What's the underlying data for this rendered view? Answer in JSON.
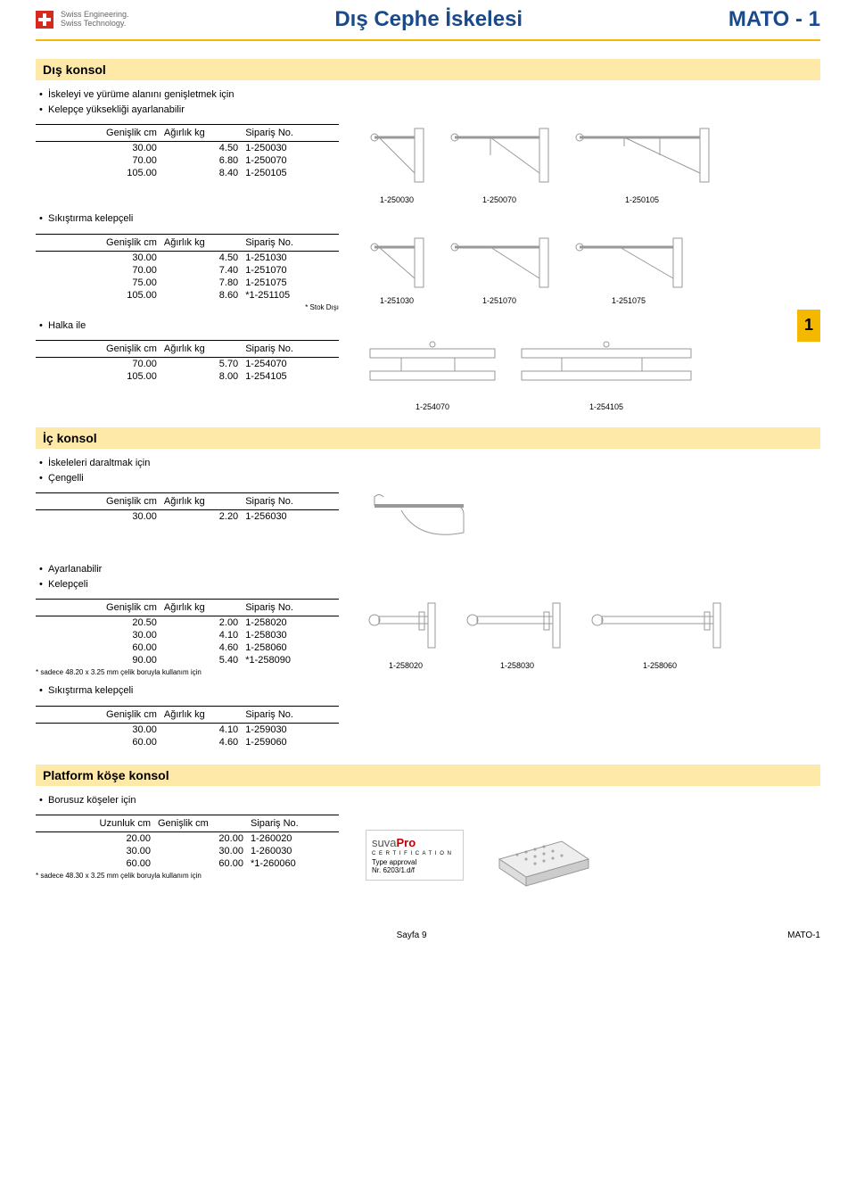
{
  "header": {
    "logo_line1": "Swiss Engineering.",
    "logo_line2": "Swiss Technology.",
    "title": "Dış Cephe İskelesi",
    "product": "MATO - 1"
  },
  "sections": {
    "dis_konsol": {
      "title": "Dış konsol",
      "bullets": [
        "İskeleyi ve yürüme alanını genişletmek için",
        "Kelepçe yüksekliği ayarlanabilir"
      ],
      "cols": [
        "Genişlik cm",
        "Ağırlık kg",
        "Sipariş No."
      ],
      "rows": [
        [
          "30.00",
          "4.50",
          "1-250030"
        ],
        [
          "70.00",
          "6.80",
          "1-250070"
        ],
        [
          "105.00",
          "8.40",
          "1-250105"
        ]
      ],
      "img_labels": [
        "1-250030",
        "1-250070",
        "1-250105"
      ]
    },
    "sikistirma1": {
      "bullets": [
        "Sıkıştırma kelepçeli"
      ],
      "cols": [
        "Genişlik cm",
        "Ağırlık kg",
        "Sipariş No."
      ],
      "rows": [
        [
          "30.00",
          "4.50",
          "1-251030"
        ],
        [
          "70.00",
          "7.40",
          "1-251070"
        ],
        [
          "75.00",
          "7.80",
          "1-251075"
        ],
        [
          "105.00",
          "8.60",
          "*1-251105"
        ]
      ],
      "footnote": "* Stok Dışı",
      "img_labels": [
        "1-251030",
        "1-251070",
        "1-251075"
      ]
    },
    "halka": {
      "bullets": [
        "Halka ile"
      ],
      "cols": [
        "Genişlik cm",
        "Ağırlık kg",
        "Sipariş No."
      ],
      "rows": [
        [
          "70.00",
          "5.70",
          "1-254070"
        ],
        [
          "105.00",
          "8.00",
          "1-254105"
        ]
      ],
      "img_labels": [
        "1-254070",
        "1-254105"
      ],
      "tab": "1"
    },
    "ic_konsol": {
      "title": "İç konsol",
      "bullets": [
        "İskeleleri daraltmak için",
        "Çengelli"
      ],
      "cols": [
        "Genişlik cm",
        "Ağırlık kg",
        "Sipariş No."
      ],
      "rows": [
        [
          "30.00",
          "2.20",
          "1-256030"
        ]
      ]
    },
    "ayarlanabilir": {
      "bullets": [
        "Ayarlanabilir",
        "Kelepçeli"
      ],
      "cols": [
        "Genişlik cm",
        "Ağırlık kg",
        "Sipariş No."
      ],
      "rows": [
        [
          "20.50",
          "2.00",
          "1-258020"
        ],
        [
          "30.00",
          "4.10",
          "1-258030"
        ],
        [
          "60.00",
          "4.60",
          "1-258060"
        ],
        [
          "90.00",
          "5.40",
          "*1-258090"
        ]
      ],
      "footnote": "* sadece 48.20 x 3.25 mm çelik boruyla kullanım için",
      "img_labels": [
        "1-258020",
        "1-258030",
        "1-258060"
      ]
    },
    "sikistirma2": {
      "bullets": [
        "Sıkıştırma kelepçeli"
      ],
      "cols": [
        "Genişlik cm",
        "Ağırlık kg",
        "Sipariş No."
      ],
      "rows": [
        [
          "30.00",
          "4.10",
          "1-259030"
        ],
        [
          "60.00",
          "4.60",
          "1-259060"
        ]
      ]
    },
    "platform": {
      "title": "Platform köşe konsol",
      "bullets": [
        "Borusuz köşeler için"
      ],
      "cols": [
        "Uzunluk cm",
        "Genişlik cm",
        "Sipariş No."
      ],
      "rows": [
        [
          "20.00",
          "20.00",
          "1-260020"
        ],
        [
          "30.00",
          "30.00",
          "1-260030"
        ],
        [
          "60.00",
          "60.00",
          "*1-260060"
        ]
      ],
      "footnote": "* sadece 48.30 x 3.25 mm çelik boruyla kullanım için",
      "cert": {
        "brand_a": "suva",
        "brand_b": "Pro",
        "line": "C E R T I F I C A T I O N",
        "type": "Type approval",
        "nr": "Nr. 6203/1.d/f"
      }
    }
  },
  "footer": {
    "page": "Sayfa 9",
    "code": "MATO-1"
  }
}
